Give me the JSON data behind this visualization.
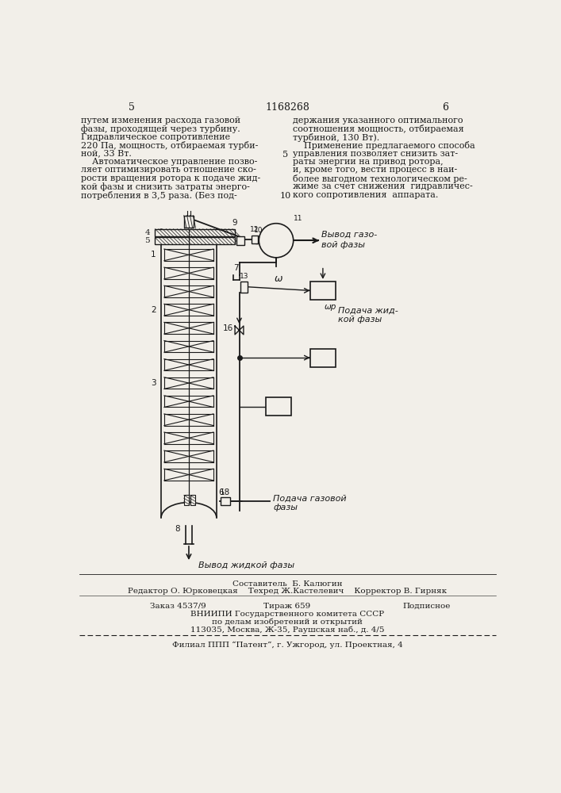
{
  "page_number_left": "5",
  "page_number_center": "1168268",
  "page_number_right": "6",
  "left_text": [
    "путем изменения расхода газовой",
    "фазы, проходящей через турбину.",
    "Гидравлическое сопротивление",
    "220 Па, мощность, отбираемая турби-",
    "ной, 33 Вт.",
    "    Автоматическое управление позво-",
    "ляет оптимизировать отношение ско-",
    "рости вращения ротора к подаче жид-",
    "кой фазы и снизить затраты энерго-",
    "потребления в 3,5 раза. (Без под-"
  ],
  "right_text": [
    "держания указанного оптимального",
    "соотношения мощность, отбираемая",
    "турбиной, 130 Вт).",
    "    Применение предлагаемого способа",
    "управления позволяет снизить зат-",
    "раты энергии на привод ротора,",
    "и, кроме того, вести процесс в наи-",
    "более выгодном технологическом ре-",
    "жиме за счет снижения  гидравличес-",
    "кого сопротивления  аппарата."
  ],
  "footer_line1": "Составитель  Б. Калюгин",
  "footer_line2": "Редактор О. Юрковецкая    Техред Ж.Кастелевич    Корректор В. Гирняк",
  "footer_line3": "Заказ 4537/9         Тираж 659           Подписное",
  "footer_line4": "ВНИИПИ Государственного комитета СССР",
  "footer_line5": "по делам изобретений и открытий",
  "footer_line6": "113035, Москва, Ж-35, Раушская наб., д. 4/5",
  "footer_line7": "Филиал ППП “Патент”, г. Ужгород, ул. Проектная, 4",
  "bg_color": "#f2efe9",
  "text_color": "#1a1a1a"
}
